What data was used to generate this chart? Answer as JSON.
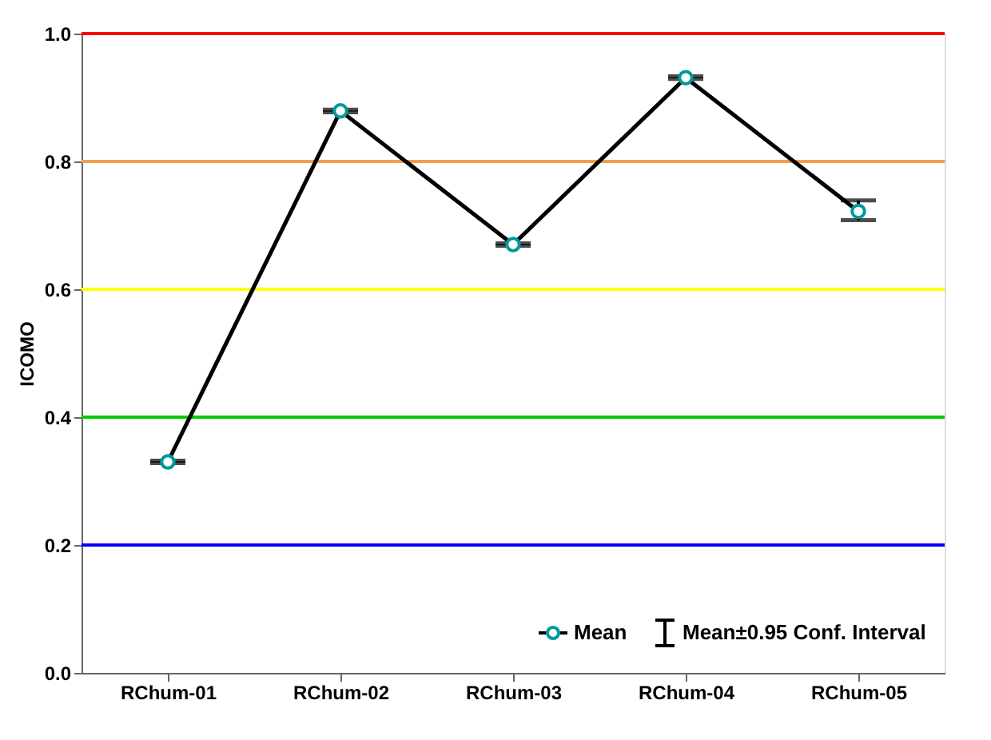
{
  "chart_data": {
    "type": "line",
    "ylabel": "ICOMO",
    "categories": [
      "RChum-01",
      "RChum-02",
      "RChum-03",
      "RChum-04",
      "RChum-05"
    ],
    "series": [
      {
        "name": "Mean",
        "color": "#000000",
        "values": [
          0.33,
          0.879,
          0.67,
          0.931,
          0.722
        ],
        "errors": [
          [
            0.328,
            0.332
          ],
          [
            0.877,
            0.881
          ],
          [
            0.668,
            0.672
          ],
          [
            0.929,
            0.933
          ],
          [
            0.708,
            0.739
          ]
        ]
      }
    ],
    "marker": "circle",
    "line_style": "solid",
    "ylim": [
      0,
      1
    ],
    "yticks": [
      {
        "value": 0,
        "label": "0.0"
      },
      0.2,
      0.4,
      0.6,
      0.8,
      {
        "value": 1,
        "label": "1.0"
      }
    ],
    "grid": false,
    "legend": "bottom right",
    "annotations": [
      "Mean±0.95 Conf. Interval"
    ],
    "ref_lines": [
      {
        "axis": "y",
        "value": 1.0,
        "color": "#ff0000"
      },
      {
        "axis": "y",
        "value": 0.8,
        "color": "#f0a050"
      },
      {
        "axis": "y",
        "value": 0.6,
        "color": "#ffff00"
      },
      {
        "axis": "y",
        "value": 0.4,
        "color": "#00cc00"
      },
      {
        "axis": "y",
        "value": 0.2,
        "color": "#0000ff"
      }
    ]
  }
}
